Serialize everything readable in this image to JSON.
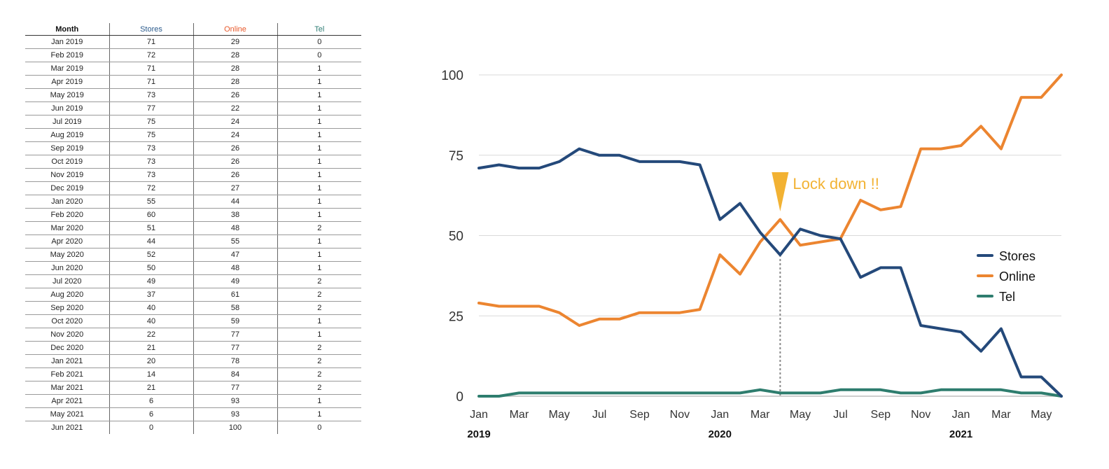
{
  "table": {
    "headers": [
      "Month",
      "Stores",
      "Online",
      "Tel"
    ],
    "header_colors": [
      "#111111",
      "#2a5a8c",
      "#e8582a",
      "#2e7d74"
    ],
    "rows": [
      [
        "Jan 2019",
        "71",
        "29",
        "0"
      ],
      [
        "Feb 2019",
        "72",
        "28",
        "0"
      ],
      [
        "Mar 2019",
        "71",
        "28",
        "1"
      ],
      [
        "Apr 2019",
        "71",
        "28",
        "1"
      ],
      [
        "May 2019",
        "73",
        "26",
        "1"
      ],
      [
        "Jun 2019",
        "77",
        "22",
        "1"
      ],
      [
        "Jul 2019",
        "75",
        "24",
        "1"
      ],
      [
        "Aug 2019",
        "75",
        "24",
        "1"
      ],
      [
        "Sep 2019",
        "73",
        "26",
        "1"
      ],
      [
        "Oct 2019",
        "73",
        "26",
        "1"
      ],
      [
        "Nov 2019",
        "73",
        "26",
        "1"
      ],
      [
        "Dec 2019",
        "72",
        "27",
        "1"
      ],
      [
        "Jan 2020",
        "55",
        "44",
        "1"
      ],
      [
        "Feb 2020",
        "60",
        "38",
        "1"
      ],
      [
        "Mar 2020",
        "51",
        "48",
        "2"
      ],
      [
        "Apr 2020",
        "44",
        "55",
        "1"
      ],
      [
        "May 2020",
        "52",
        "47",
        "1"
      ],
      [
        "Jun 2020",
        "50",
        "48",
        "1"
      ],
      [
        "Jul 2020",
        "49",
        "49",
        "2"
      ],
      [
        "Aug 2020",
        "37",
        "61",
        "2"
      ],
      [
        "Sep 2020",
        "40",
        "58",
        "2"
      ],
      [
        "Oct 2020",
        "40",
        "59",
        "1"
      ],
      [
        "Nov 2020",
        "22",
        "77",
        "1"
      ],
      [
        "Dec 2020",
        "21",
        "77",
        "2"
      ],
      [
        "Jan 2021",
        "20",
        "78",
        "2"
      ],
      [
        "Feb 2021",
        "14",
        "84",
        "2"
      ],
      [
        "Mar 2021",
        "21",
        "77",
        "2"
      ],
      [
        "Apr 2021",
        "6",
        "93",
        "1"
      ],
      [
        "May 2021",
        "6",
        "93",
        "1"
      ],
      [
        "Jun 2021",
        "0",
        "100",
        "0"
      ]
    ]
  },
  "chart_data": {
    "type": "line",
    "title": "",
    "xlabel": "",
    "ylabel": "",
    "ylim": [
      0,
      100
    ],
    "yticks": [
      0,
      25,
      50,
      75,
      100
    ],
    "grid": true,
    "legend_position": "right",
    "x": [
      "Jan 2019",
      "Feb 2019",
      "Mar 2019",
      "Apr 2019",
      "May 2019",
      "Jun 2019",
      "Jul 2019",
      "Aug 2019",
      "Sep 2019",
      "Oct 2019",
      "Nov 2019",
      "Dec 2019",
      "Jan 2020",
      "Feb 2020",
      "Mar 2020",
      "Apr 2020",
      "May 2020",
      "Jun 2020",
      "Jul 2020",
      "Aug 2020",
      "Sep 2020",
      "Oct 2020",
      "Nov 2020",
      "Dec 2020",
      "Jan 2021",
      "Feb 2021",
      "Mar 2021",
      "Apr 2021",
      "May 2021",
      "Jun 2021"
    ],
    "x_tick_labels": [
      "Jan",
      "Mar",
      "May",
      "Jul",
      "Sep",
      "Nov",
      "Jan",
      "Mar",
      "May",
      "Jul",
      "Sep",
      "Nov",
      "Jan",
      "Mar",
      "May"
    ],
    "year_labels": [
      "2019",
      "2020",
      "2021"
    ],
    "series": [
      {
        "name": "Stores",
        "color": "#24497a",
        "values": [
          71,
          72,
          71,
          71,
          73,
          77,
          75,
          75,
          73,
          73,
          73,
          72,
          55,
          60,
          51,
          44,
          52,
          50,
          49,
          37,
          40,
          40,
          22,
          21,
          20,
          14,
          21,
          6,
          6,
          0
        ]
      },
      {
        "name": "Online",
        "color": "#ec8530",
        "values": [
          29,
          28,
          28,
          28,
          26,
          22,
          24,
          24,
          26,
          26,
          26,
          27,
          44,
          38,
          48,
          55,
          47,
          48,
          49,
          61,
          58,
          59,
          77,
          77,
          78,
          84,
          77,
          93,
          93,
          100
        ]
      },
      {
        "name": "Tel",
        "color": "#2e7d6e",
        "values": [
          0,
          0,
          1,
          1,
          1,
          1,
          1,
          1,
          1,
          1,
          1,
          1,
          1,
          1,
          2,
          1,
          1,
          1,
          2,
          2,
          2,
          1,
          1,
          2,
          2,
          2,
          2,
          1,
          1,
          0
        ]
      }
    ],
    "annotation": {
      "text": "Lock down !!",
      "x": "Apr 2020",
      "color": "#f2b233"
    }
  }
}
